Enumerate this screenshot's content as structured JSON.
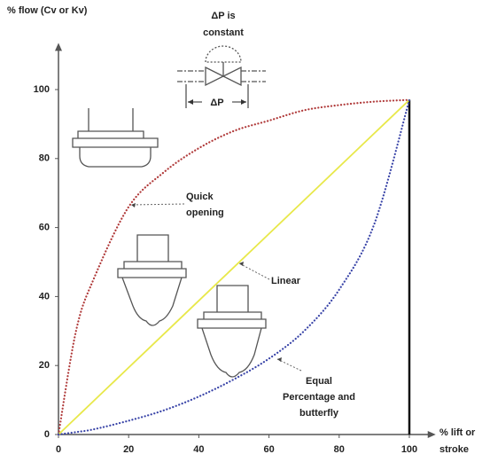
{
  "chart_data": {
    "type": "line",
    "ylabel": "% flow (Cv or Kv)",
    "xlabel_lines": [
      "% lift or",
      "stroke"
    ],
    "x": [
      0,
      5,
      10,
      20,
      30,
      40,
      50,
      60,
      70,
      80,
      90,
      100
    ],
    "series": [
      {
        "label_lines": [
          "Quick",
          "opening"
        ],
        "color": "#b03a3a",
        "values": [
          0,
          30,
          45,
          66,
          76,
          83,
          88,
          91,
          94,
          95.5,
          96.5,
          97
        ]
      },
      {
        "label_lines": [
          "Linear"
        ],
        "color": "#e8e84a",
        "values": [
          0,
          4.85,
          9.7,
          19.4,
          29.1,
          38.8,
          48.5,
          58.2,
          67.9,
          77.6,
          87.3,
          97
        ]
      },
      {
        "label_lines": [
          "Equal",
          "Percentage and",
          "butterfly"
        ],
        "color": "#3a45a8",
        "values": [
          0,
          0.7,
          1.5,
          4,
          7,
          11,
          16,
          22,
          30,
          42,
          61,
          97
        ]
      }
    ],
    "xlim": [
      0,
      106
    ],
    "ylim": [
      0,
      112
    ],
    "xticks": [
      0,
      20,
      40,
      60,
      80,
      100
    ],
    "yticks": [
      0,
      20,
      40,
      60,
      80,
      100
    ]
  },
  "diagram": {
    "label_lines": [
      "ΔP is",
      "constant"
    ],
    "dimension": "ΔP"
  }
}
